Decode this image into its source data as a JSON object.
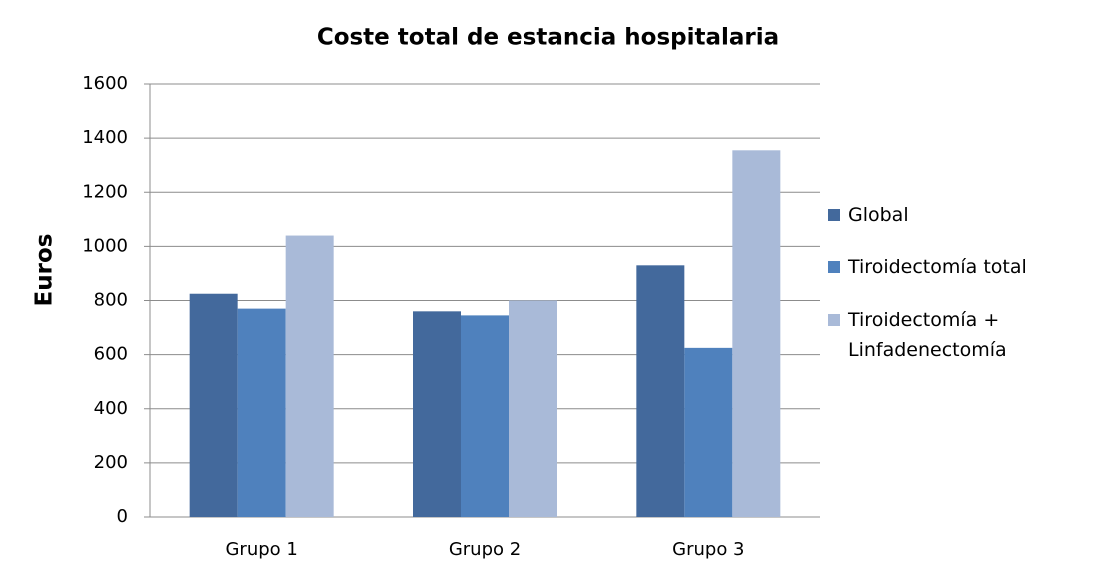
{
  "chart_data": {
    "type": "bar",
    "title": "Coste total de estancia hospitalaria",
    "y_label": "Euros",
    "categories": [
      "Grupo 1",
      "Grupo 2",
      "Grupo 3"
    ],
    "series": [
      {
        "name": "Global",
        "color": "#43699c",
        "values": [
          825,
          760,
          930
        ]
      },
      {
        "name": "Tiroidectomía total",
        "color": "#4f81bd",
        "values": [
          770,
          745,
          625
        ]
      },
      {
        "name": "Tiroidectomía + Linfadenectomía",
        "color": "#a9bad8",
        "values": [
          1040,
          800,
          1355
        ]
      }
    ],
    "ylim": [
      0,
      1600
    ],
    "yticks": [
      0,
      200,
      400,
      600,
      800,
      1000,
      1200,
      1400,
      1600
    ],
    "grid": true,
    "legend": "right"
  }
}
